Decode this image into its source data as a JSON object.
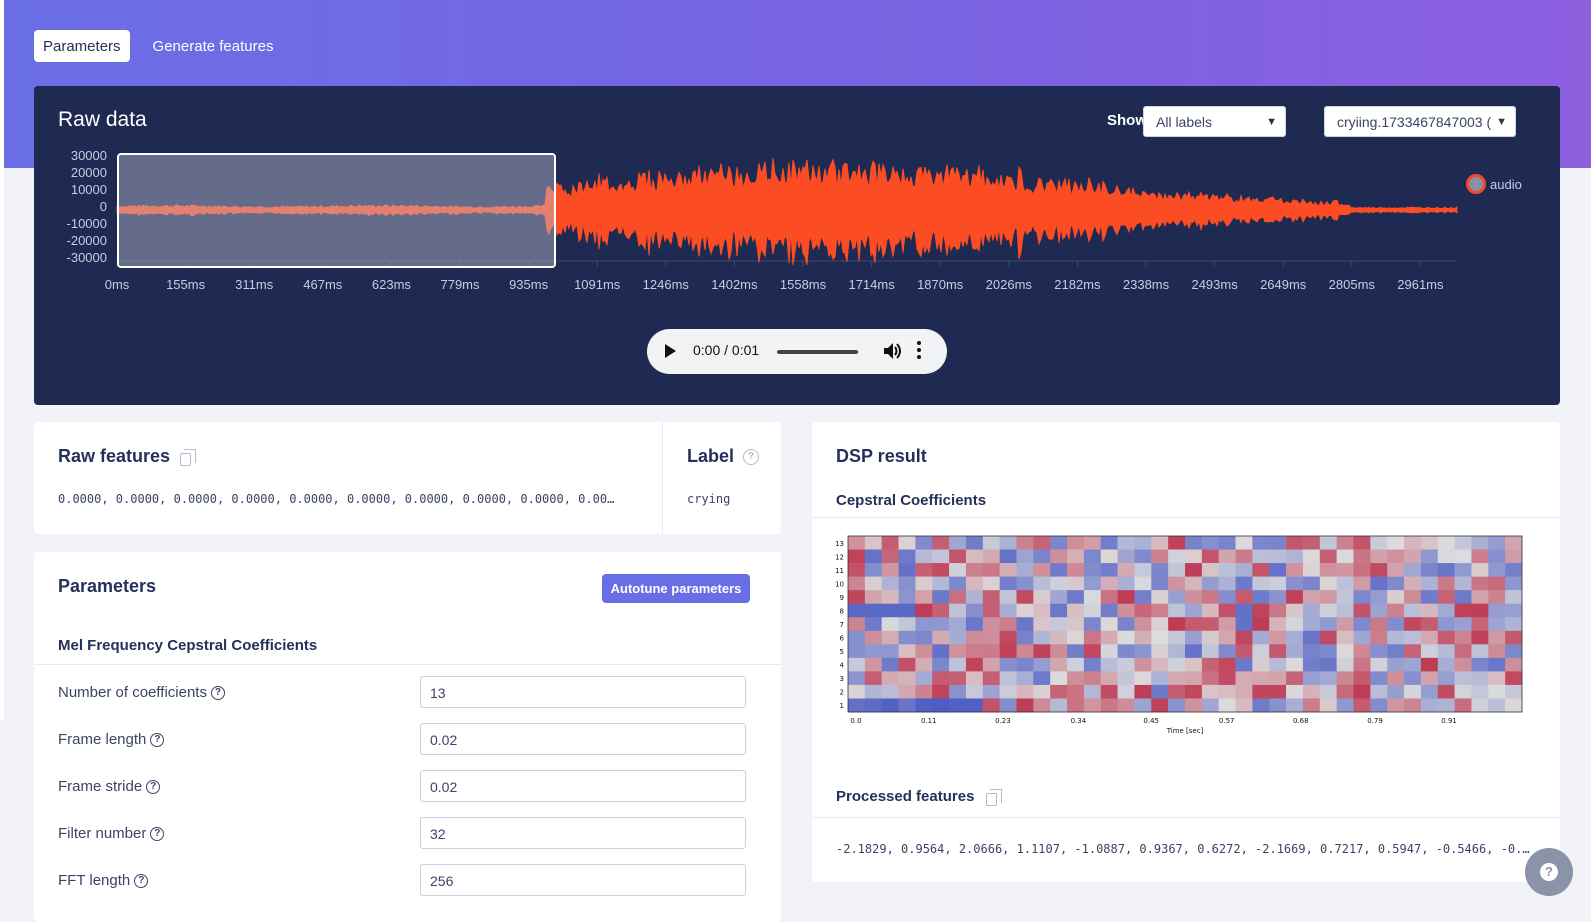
{
  "tabs": [
    {
      "label": "Parameters",
      "active": true
    },
    {
      "label": "Generate features",
      "active": false
    }
  ],
  "raw_data": {
    "title": "Raw data",
    "show_label": "Show:",
    "show_select_value": "All labels",
    "sample_select_value": "cryiing.1733467847003 (",
    "legend_label": "audio",
    "wave_color": "#fc4c23",
    "y_ticks": [
      "30000",
      "20000",
      "10000",
      "0",
      "-10000",
      "-20000",
      "-30000"
    ],
    "x_ticks": [
      "0ms",
      "155ms",
      "311ms",
      "467ms",
      "623ms",
      "779ms",
      "935ms",
      "1091ms",
      "1246ms",
      "1402ms",
      "1558ms",
      "1714ms",
      "1870ms",
      "2026ms",
      "2182ms",
      "2338ms",
      "2493ms",
      "2649ms",
      "2805ms",
      "2961ms"
    ]
  },
  "player": {
    "time": "0:00 / 0:01"
  },
  "raw_features": {
    "title": "Raw features",
    "values": "0.0000, 0.0000, 0.0000, 0.0000, 0.0000, 0.0000, 0.0000, 0.0000, 0.0000, 0.000…"
  },
  "label_card": {
    "title": "Label",
    "value": "crying"
  },
  "parameters": {
    "title": "Parameters",
    "autotune_label": "Autotune parameters",
    "section_title": "Mel Frequency Cepstral Coefficients",
    "fields": [
      {
        "label": "Number of coefficients",
        "value": "13"
      },
      {
        "label": "Frame length",
        "value": "0.02"
      },
      {
        "label": "Frame stride",
        "value": "0.02"
      },
      {
        "label": "Filter number",
        "value": "32"
      },
      {
        "label": "FFT length",
        "value": "256"
      }
    ]
  },
  "dsp": {
    "title": "DSP result",
    "subtitle": "Cepstral Coefficients",
    "heatmap_y_ticks": [
      "13",
      "12",
      "11",
      "10",
      "9",
      "8",
      "7",
      "6",
      "5",
      "4",
      "3",
      "2",
      "1"
    ],
    "heatmap_x_ticks": [
      "0.0",
      "0.11",
      "0.23",
      "0.34",
      "0.45",
      "0.57",
      "0.68",
      "0.79",
      "0.91"
    ],
    "heatmap_xlabel": "Time [sec]",
    "processed_title": "Processed features",
    "processed_values": "-2.1829, 0.9564, 2.0666, 1.1107, -1.0887, 0.9367, 0.6272, -2.1669, 0.7217, 0.5947, -0.5466, -0.…"
  }
}
